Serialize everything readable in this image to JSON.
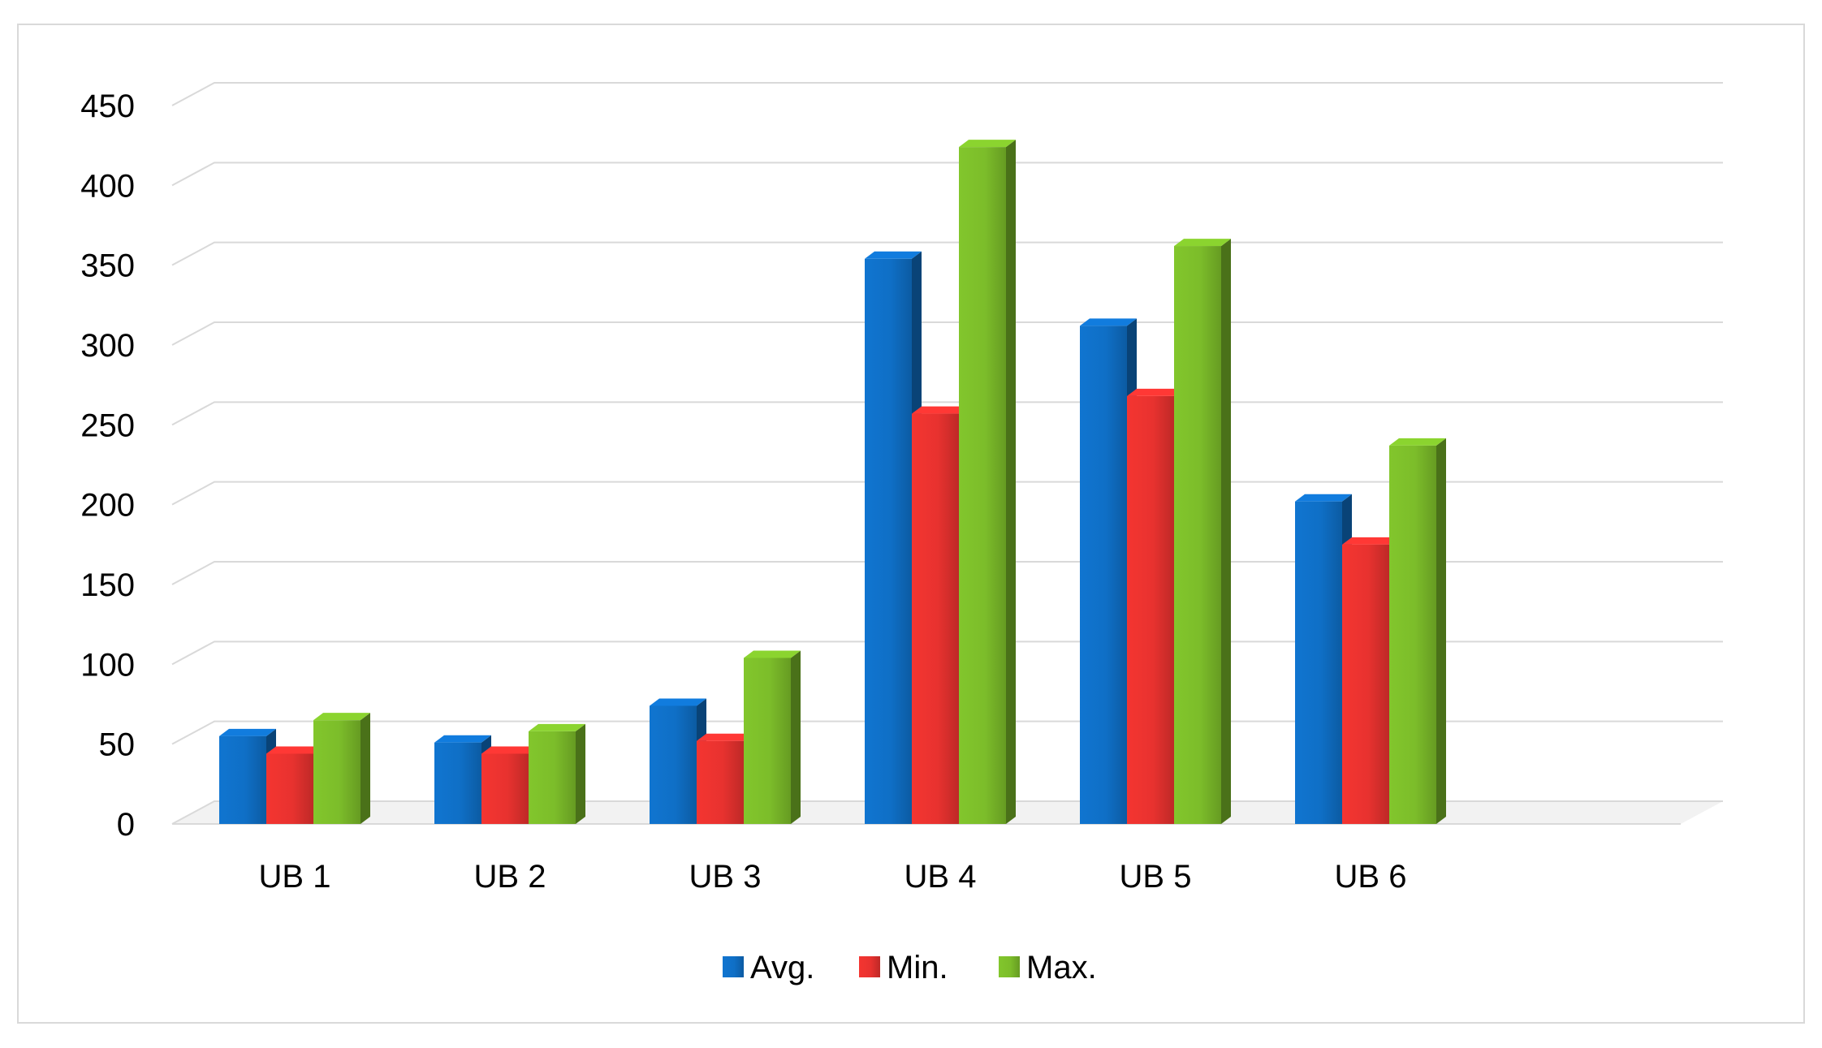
{
  "chart_data": {
    "type": "bar",
    "style": "3d-clustered-column",
    "categories": [
      "UB 1",
      "UB 2",
      "UB 3",
      "UB 4",
      "UB 5",
      "UB 6"
    ],
    "series": [
      {
        "name": "Avg.",
        "values": [
          55,
          51,
          74,
          354,
          312,
          202
        ],
        "color": "#0f6fc6"
      },
      {
        "name": "Min.",
        "values": [
          44,
          44,
          52,
          257,
          268,
          175
        ],
        "color": "#e8322f"
      },
      {
        "name": "Max.",
        "values": [
          65,
          58,
          104,
          424,
          362,
          237
        ],
        "color": "#7cbd2a"
      }
    ],
    "y_ticks": [
      "0",
      "50",
      "100",
      "150",
      "200",
      "250",
      "300",
      "350",
      "400",
      "450"
    ],
    "ylim": [
      0,
      450
    ],
    "grid": true,
    "legend_position": "bottom",
    "title": "",
    "xlabel": "",
    "ylabel": ""
  }
}
